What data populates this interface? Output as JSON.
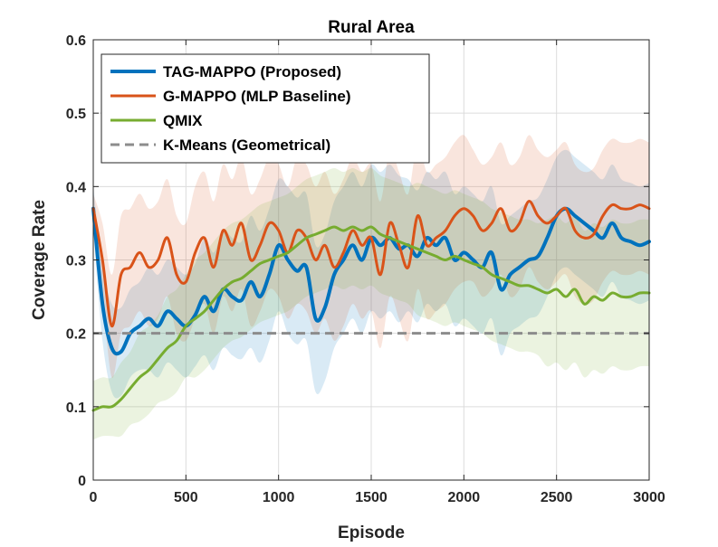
{
  "chart_data": {
    "type": "line",
    "title": "Rural Area",
    "xlabel": "Episode",
    "ylabel": "Coverage Rate",
    "xlim": [
      0,
      3000
    ],
    "ylim": [
      0,
      0.6
    ],
    "grid": true,
    "legend_position": "top-left",
    "x_ticks": [
      0,
      500,
      1000,
      1500,
      2000,
      2500,
      3000
    ],
    "x_tick_labels": [
      "0",
      "500",
      "1000",
      "1500",
      "2000",
      "2500",
      "3000"
    ],
    "y_ticks": [
      0,
      0.1,
      0.2,
      0.3,
      0.4,
      0.5,
      0.6
    ],
    "y_tick_labels": [
      "0",
      "0.1",
      "0.2",
      "0.3",
      "0.4",
      "0.5",
      "0.6"
    ],
    "series": [
      {
        "name": "TAG-MAPPO (Proposed)",
        "color": "#0072BD",
        "style": "solid",
        "x": [
          0,
          50,
          100,
          150,
          200,
          250,
          300,
          350,
          400,
          450,
          500,
          550,
          600,
          650,
          700,
          750,
          800,
          850,
          900,
          950,
          1000,
          1050,
          1100,
          1150,
          1200,
          1250,
          1300,
          1350,
          1400,
          1450,
          1500,
          1550,
          1600,
          1650,
          1700,
          1750,
          1800,
          1850,
          1900,
          1950,
          2000,
          2050,
          2100,
          2150,
          2200,
          2250,
          2300,
          2350,
          2400,
          2450,
          2500,
          2550,
          2600,
          2650,
          2700,
          2750,
          2800,
          2850,
          2900,
          2950,
          3000
        ],
        "y": [
          0.37,
          0.24,
          0.18,
          0.175,
          0.2,
          0.21,
          0.22,
          0.21,
          0.23,
          0.22,
          0.21,
          0.225,
          0.25,
          0.23,
          0.26,
          0.25,
          0.245,
          0.27,
          0.25,
          0.28,
          0.32,
          0.3,
          0.285,
          0.29,
          0.22,
          0.235,
          0.28,
          0.3,
          0.32,
          0.3,
          0.33,
          0.32,
          0.33,
          0.315,
          0.32,
          0.305,
          0.33,
          0.32,
          0.33,
          0.3,
          0.31,
          0.3,
          0.29,
          0.31,
          0.26,
          0.28,
          0.29,
          0.3,
          0.305,
          0.33,
          0.36,
          0.37,
          0.36,
          0.35,
          0.34,
          0.33,
          0.35,
          0.33,
          0.325,
          0.32,
          0.325
        ],
        "band_width": [
          0.03,
          0.05,
          0.06,
          0.06,
          0.06,
          0.06,
          0.07,
          0.07,
          0.07,
          0.07,
          0.07,
          0.07,
          0.08,
          0.08,
          0.08,
          0.08,
          0.08,
          0.09,
          0.09,
          0.09,
          0.09,
          0.1,
          0.1,
          0.1,
          0.1,
          0.1,
          0.1,
          0.1,
          0.1,
          0.1,
          0.1,
          0.1,
          0.1,
          0.1,
          0.09,
          0.09,
          0.09,
          0.09,
          0.09,
          0.09,
          0.09,
          0.09,
          0.09,
          0.09,
          0.09,
          0.08,
          0.08,
          0.08,
          0.08,
          0.08,
          0.08,
          0.08,
          0.08,
          0.08,
          0.08,
          0.08,
          0.08,
          0.08,
          0.08,
          0.08,
          0.08
        ]
      },
      {
        "name": "G-MAPPO (MLP Baseline)",
        "color": "#D95319",
        "style": "solid",
        "x": [
          0,
          50,
          100,
          150,
          200,
          250,
          300,
          350,
          400,
          450,
          500,
          550,
          600,
          650,
          700,
          750,
          800,
          850,
          900,
          950,
          1000,
          1050,
          1100,
          1150,
          1200,
          1250,
          1300,
          1350,
          1400,
          1450,
          1500,
          1550,
          1600,
          1650,
          1700,
          1750,
          1800,
          1850,
          1900,
          1950,
          2000,
          2050,
          2100,
          2150,
          2200,
          2250,
          2300,
          2350,
          2400,
          2450,
          2500,
          2550,
          2600,
          2650,
          2700,
          2750,
          2800,
          2850,
          2900,
          2950,
          3000
        ],
        "y": [
          0.37,
          0.3,
          0.21,
          0.28,
          0.29,
          0.31,
          0.29,
          0.3,
          0.33,
          0.28,
          0.27,
          0.31,
          0.33,
          0.29,
          0.34,
          0.32,
          0.35,
          0.3,
          0.32,
          0.35,
          0.34,
          0.31,
          0.34,
          0.33,
          0.3,
          0.32,
          0.29,
          0.31,
          0.34,
          0.32,
          0.33,
          0.28,
          0.35,
          0.32,
          0.29,
          0.36,
          0.32,
          0.33,
          0.34,
          0.36,
          0.37,
          0.36,
          0.34,
          0.35,
          0.37,
          0.34,
          0.35,
          0.38,
          0.36,
          0.35,
          0.36,
          0.37,
          0.34,
          0.33,
          0.335,
          0.36,
          0.375,
          0.37,
          0.37,
          0.375,
          0.37
        ],
        "band_width": [
          0.02,
          0.05,
          0.07,
          0.08,
          0.08,
          0.08,
          0.08,
          0.08,
          0.08,
          0.08,
          0.08,
          0.09,
          0.09,
          0.09,
          0.09,
          0.09,
          0.09,
          0.09,
          0.09,
          0.09,
          0.09,
          0.09,
          0.1,
          0.1,
          0.1,
          0.1,
          0.1,
          0.1,
          0.1,
          0.1,
          0.1,
          0.1,
          0.1,
          0.1,
          0.1,
          0.1,
          0.1,
          0.1,
          0.1,
          0.1,
          0.1,
          0.09,
          0.09,
          0.09,
          0.09,
          0.09,
          0.09,
          0.09,
          0.09,
          0.09,
          0.09,
          0.09,
          0.09,
          0.09,
          0.09,
          0.09,
          0.09,
          0.09,
          0.09,
          0.09,
          0.09
        ]
      },
      {
        "name": "QMIX",
        "color": "#77AC30",
        "style": "solid",
        "x": [
          0,
          50,
          100,
          150,
          200,
          250,
          300,
          350,
          400,
          450,
          500,
          550,
          600,
          650,
          700,
          750,
          800,
          850,
          900,
          950,
          1000,
          1050,
          1100,
          1150,
          1200,
          1250,
          1300,
          1350,
          1400,
          1450,
          1500,
          1550,
          1600,
          1650,
          1700,
          1750,
          1800,
          1850,
          1900,
          1950,
          2000,
          2050,
          2100,
          2150,
          2200,
          2250,
          2300,
          2350,
          2400,
          2450,
          2500,
          2550,
          2600,
          2650,
          2700,
          2750,
          2800,
          2850,
          2900,
          2950,
          3000
        ],
        "y": [
          0.095,
          0.1,
          0.1,
          0.11,
          0.125,
          0.14,
          0.15,
          0.165,
          0.18,
          0.19,
          0.21,
          0.22,
          0.23,
          0.245,
          0.26,
          0.27,
          0.275,
          0.285,
          0.295,
          0.3,
          0.305,
          0.31,
          0.32,
          0.33,
          0.335,
          0.34,
          0.345,
          0.34,
          0.345,
          0.34,
          0.345,
          0.335,
          0.33,
          0.325,
          0.32,
          0.315,
          0.31,
          0.305,
          0.3,
          0.305,
          0.3,
          0.295,
          0.29,
          0.28,
          0.275,
          0.27,
          0.265,
          0.265,
          0.26,
          0.255,
          0.26,
          0.25,
          0.26,
          0.24,
          0.25,
          0.245,
          0.255,
          0.25,
          0.25,
          0.255,
          0.255
        ],
        "band_width": [
          0.04,
          0.04,
          0.04,
          0.05,
          0.05,
          0.06,
          0.06,
          0.06,
          0.07,
          0.07,
          0.07,
          0.08,
          0.08,
          0.08,
          0.08,
          0.08,
          0.08,
          0.08,
          0.08,
          0.08,
          0.08,
          0.08,
          0.08,
          0.08,
          0.08,
          0.08,
          0.08,
          0.08,
          0.08,
          0.08,
          0.08,
          0.08,
          0.08,
          0.08,
          0.08,
          0.09,
          0.09,
          0.09,
          0.09,
          0.09,
          0.09,
          0.09,
          0.09,
          0.09,
          0.09,
          0.09,
          0.09,
          0.09,
          0.09,
          0.1,
          0.1,
          0.1,
          0.1,
          0.1,
          0.1,
          0.1,
          0.1,
          0.1,
          0.1,
          0.1,
          0.1
        ]
      },
      {
        "name": "K-Means (Geometrical)",
        "color": "#8c8c8c",
        "style": "dashed",
        "x": [
          0,
          3000
        ],
        "y": [
          0.2,
          0.2
        ]
      }
    ]
  }
}
